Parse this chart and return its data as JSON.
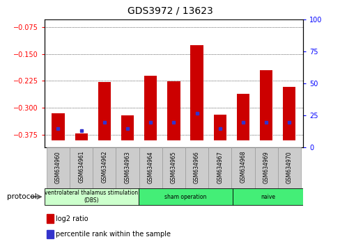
{
  "title": "GDS3972 / 13623",
  "samples": [
    "GSM634960",
    "GSM634961",
    "GSM634962",
    "GSM634963",
    "GSM634964",
    "GSM634965",
    "GSM634966",
    "GSM634967",
    "GSM634968",
    "GSM634969",
    "GSM634970"
  ],
  "log2_ratio": [
    -0.315,
    -0.37,
    -0.228,
    -0.32,
    -0.21,
    -0.226,
    -0.125,
    -0.318,
    -0.26,
    -0.195,
    -0.242
  ],
  "percentile_rank": [
    15,
    13,
    20,
    15,
    20,
    20,
    27,
    15,
    20,
    20,
    20
  ],
  "bar_bottom": -0.39,
  "ylim_left": [
    -0.41,
    -0.055
  ],
  "yticks_left": [
    -0.375,
    -0.3,
    -0.225,
    -0.15,
    -0.075
  ],
  "ylim_right": [
    0,
    100
  ],
  "yticks_right": [
    0,
    25,
    50,
    75,
    100
  ],
  "bar_color": "#cc0000",
  "blue_color": "#3333cc",
  "bar_width": 0.55,
  "protocol_label": "protocol",
  "bg_color": "#ffffff",
  "plot_bg": "#ffffff",
  "group_data": [
    {
      "start": 0,
      "end": 4,
      "color": "#ccffcc",
      "label": "ventrolateral thalamus stimulation\n(DBS)"
    },
    {
      "start": 4,
      "end": 8,
      "color": "#44ee77",
      "label": "sham operation"
    },
    {
      "start": 8,
      "end": 11,
      "color": "#44ee77",
      "label": "naive"
    }
  ]
}
